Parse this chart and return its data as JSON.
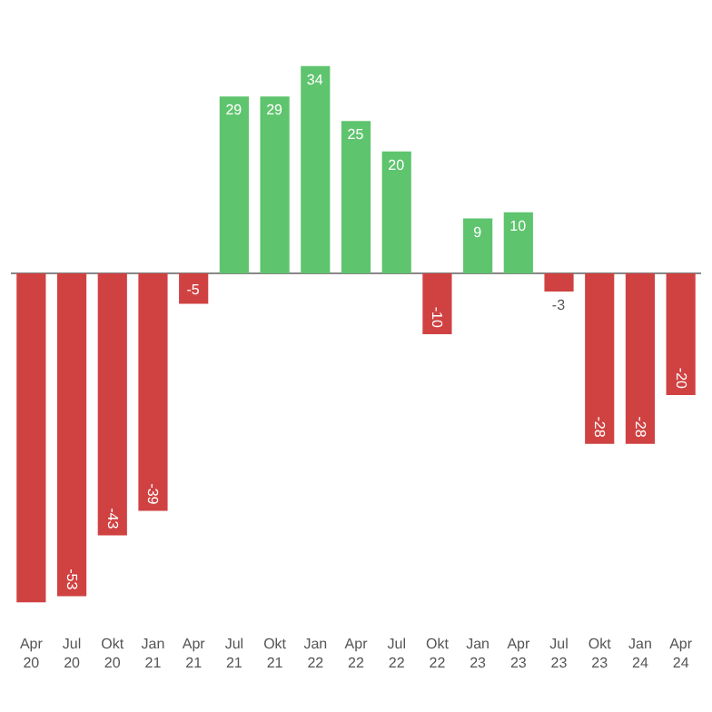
{
  "chart_data": {
    "type": "bar",
    "categories": [
      "Apr\n20",
      "Jul\n20",
      "Okt\n20",
      "Jan\n21",
      "Apr\n21",
      "Jul\n21",
      "Okt\n21",
      "Jan\n22",
      "Apr\n22",
      "Jul\n22",
      "Okt\n22",
      "Jan\n23",
      "Apr\n23",
      "Jul\n23",
      "Okt\n23",
      "Jan\n24",
      "Apr\n24"
    ],
    "values": [
      -54,
      -53,
      -43,
      -39,
      -5,
      29,
      29,
      34,
      25,
      20,
      -10,
      9,
      10,
      -3,
      -28,
      -28,
      -20
    ],
    "value_labels": [
      null,
      "-53",
      "-43",
      "-39",
      "-5",
      "29",
      "29",
      "34",
      "25",
      "20",
      "-10",
      "9",
      "10",
      "-3",
      "-28",
      "-28",
      "-20"
    ],
    "colors": [
      "#d04242",
      "#d04242",
      "#d04242",
      "#d04242",
      "#d04242",
      "#5ec46e",
      "#5ec46e",
      "#5ec46e",
      "#5ec46e",
      "#5ec46e",
      "#d04242",
      "#5ec46e",
      "#5ec46e",
      "#d04242",
      "#d04242",
      "#d04242",
      "#d04242"
    ],
    "tick_labels": "x",
    "grid": false,
    "legend": false
  }
}
